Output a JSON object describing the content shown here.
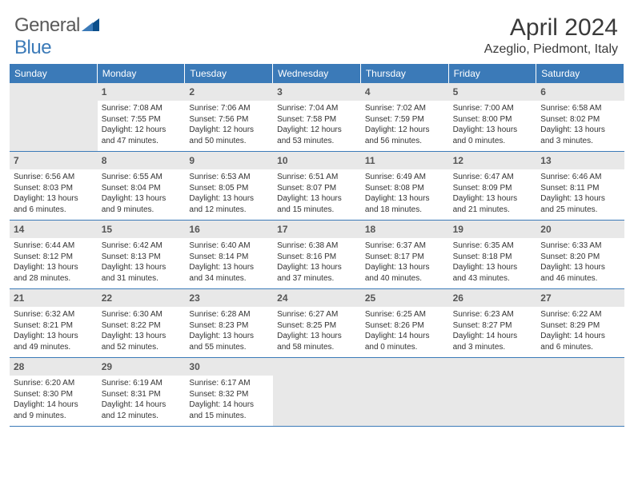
{
  "brand": {
    "part1": "General",
    "part2": "Blue"
  },
  "title": "April 2024",
  "location": "Azeglio, Piedmont, Italy",
  "colors": {
    "header_bg": "#3b7ab8",
    "header_text": "#ffffff",
    "cell_border": "#3b7ab8",
    "daynum_bg": "#e8e8e8",
    "empty_bg": "#e8e8e8",
    "text": "#333333",
    "brand_gray": "#5a5a5a",
    "brand_blue": "#3b7ab8"
  },
  "weekdays": [
    "Sunday",
    "Monday",
    "Tuesday",
    "Wednesday",
    "Thursday",
    "Friday",
    "Saturday"
  ],
  "grid": {
    "leading_empty": 1,
    "trailing_empty": 4
  },
  "days": [
    {
      "n": "1",
      "sunrise": "Sunrise: 7:08 AM",
      "sunset": "Sunset: 7:55 PM",
      "day1": "Daylight: 12 hours",
      "day2": "and 47 minutes."
    },
    {
      "n": "2",
      "sunrise": "Sunrise: 7:06 AM",
      "sunset": "Sunset: 7:56 PM",
      "day1": "Daylight: 12 hours",
      "day2": "and 50 minutes."
    },
    {
      "n": "3",
      "sunrise": "Sunrise: 7:04 AM",
      "sunset": "Sunset: 7:58 PM",
      "day1": "Daylight: 12 hours",
      "day2": "and 53 minutes."
    },
    {
      "n": "4",
      "sunrise": "Sunrise: 7:02 AM",
      "sunset": "Sunset: 7:59 PM",
      "day1": "Daylight: 12 hours",
      "day2": "and 56 minutes."
    },
    {
      "n": "5",
      "sunrise": "Sunrise: 7:00 AM",
      "sunset": "Sunset: 8:00 PM",
      "day1": "Daylight: 13 hours",
      "day2": "and 0 minutes."
    },
    {
      "n": "6",
      "sunrise": "Sunrise: 6:58 AM",
      "sunset": "Sunset: 8:02 PM",
      "day1": "Daylight: 13 hours",
      "day2": "and 3 minutes."
    },
    {
      "n": "7",
      "sunrise": "Sunrise: 6:56 AM",
      "sunset": "Sunset: 8:03 PM",
      "day1": "Daylight: 13 hours",
      "day2": "and 6 minutes."
    },
    {
      "n": "8",
      "sunrise": "Sunrise: 6:55 AM",
      "sunset": "Sunset: 8:04 PM",
      "day1": "Daylight: 13 hours",
      "day2": "and 9 minutes."
    },
    {
      "n": "9",
      "sunrise": "Sunrise: 6:53 AM",
      "sunset": "Sunset: 8:05 PM",
      "day1": "Daylight: 13 hours",
      "day2": "and 12 minutes."
    },
    {
      "n": "10",
      "sunrise": "Sunrise: 6:51 AM",
      "sunset": "Sunset: 8:07 PM",
      "day1": "Daylight: 13 hours",
      "day2": "and 15 minutes."
    },
    {
      "n": "11",
      "sunrise": "Sunrise: 6:49 AM",
      "sunset": "Sunset: 8:08 PM",
      "day1": "Daylight: 13 hours",
      "day2": "and 18 minutes."
    },
    {
      "n": "12",
      "sunrise": "Sunrise: 6:47 AM",
      "sunset": "Sunset: 8:09 PM",
      "day1": "Daylight: 13 hours",
      "day2": "and 21 minutes."
    },
    {
      "n": "13",
      "sunrise": "Sunrise: 6:46 AM",
      "sunset": "Sunset: 8:11 PM",
      "day1": "Daylight: 13 hours",
      "day2": "and 25 minutes."
    },
    {
      "n": "14",
      "sunrise": "Sunrise: 6:44 AM",
      "sunset": "Sunset: 8:12 PM",
      "day1": "Daylight: 13 hours",
      "day2": "and 28 minutes."
    },
    {
      "n": "15",
      "sunrise": "Sunrise: 6:42 AM",
      "sunset": "Sunset: 8:13 PM",
      "day1": "Daylight: 13 hours",
      "day2": "and 31 minutes."
    },
    {
      "n": "16",
      "sunrise": "Sunrise: 6:40 AM",
      "sunset": "Sunset: 8:14 PM",
      "day1": "Daylight: 13 hours",
      "day2": "and 34 minutes."
    },
    {
      "n": "17",
      "sunrise": "Sunrise: 6:38 AM",
      "sunset": "Sunset: 8:16 PM",
      "day1": "Daylight: 13 hours",
      "day2": "and 37 minutes."
    },
    {
      "n": "18",
      "sunrise": "Sunrise: 6:37 AM",
      "sunset": "Sunset: 8:17 PM",
      "day1": "Daylight: 13 hours",
      "day2": "and 40 minutes."
    },
    {
      "n": "19",
      "sunrise": "Sunrise: 6:35 AM",
      "sunset": "Sunset: 8:18 PM",
      "day1": "Daylight: 13 hours",
      "day2": "and 43 minutes."
    },
    {
      "n": "20",
      "sunrise": "Sunrise: 6:33 AM",
      "sunset": "Sunset: 8:20 PM",
      "day1": "Daylight: 13 hours",
      "day2": "and 46 minutes."
    },
    {
      "n": "21",
      "sunrise": "Sunrise: 6:32 AM",
      "sunset": "Sunset: 8:21 PM",
      "day1": "Daylight: 13 hours",
      "day2": "and 49 minutes."
    },
    {
      "n": "22",
      "sunrise": "Sunrise: 6:30 AM",
      "sunset": "Sunset: 8:22 PM",
      "day1": "Daylight: 13 hours",
      "day2": "and 52 minutes."
    },
    {
      "n": "23",
      "sunrise": "Sunrise: 6:28 AM",
      "sunset": "Sunset: 8:23 PM",
      "day1": "Daylight: 13 hours",
      "day2": "and 55 minutes."
    },
    {
      "n": "24",
      "sunrise": "Sunrise: 6:27 AM",
      "sunset": "Sunset: 8:25 PM",
      "day1": "Daylight: 13 hours",
      "day2": "and 58 minutes."
    },
    {
      "n": "25",
      "sunrise": "Sunrise: 6:25 AM",
      "sunset": "Sunset: 8:26 PM",
      "day1": "Daylight: 14 hours",
      "day2": "and 0 minutes."
    },
    {
      "n": "26",
      "sunrise": "Sunrise: 6:23 AM",
      "sunset": "Sunset: 8:27 PM",
      "day1": "Daylight: 14 hours",
      "day2": "and 3 minutes."
    },
    {
      "n": "27",
      "sunrise": "Sunrise: 6:22 AM",
      "sunset": "Sunset: 8:29 PM",
      "day1": "Daylight: 14 hours",
      "day2": "and 6 minutes."
    },
    {
      "n": "28",
      "sunrise": "Sunrise: 6:20 AM",
      "sunset": "Sunset: 8:30 PM",
      "day1": "Daylight: 14 hours",
      "day2": "and 9 minutes."
    },
    {
      "n": "29",
      "sunrise": "Sunrise: 6:19 AM",
      "sunset": "Sunset: 8:31 PM",
      "day1": "Daylight: 14 hours",
      "day2": "and 12 minutes."
    },
    {
      "n": "30",
      "sunrise": "Sunrise: 6:17 AM",
      "sunset": "Sunset: 8:32 PM",
      "day1": "Daylight: 14 hours",
      "day2": "and 15 minutes."
    }
  ]
}
